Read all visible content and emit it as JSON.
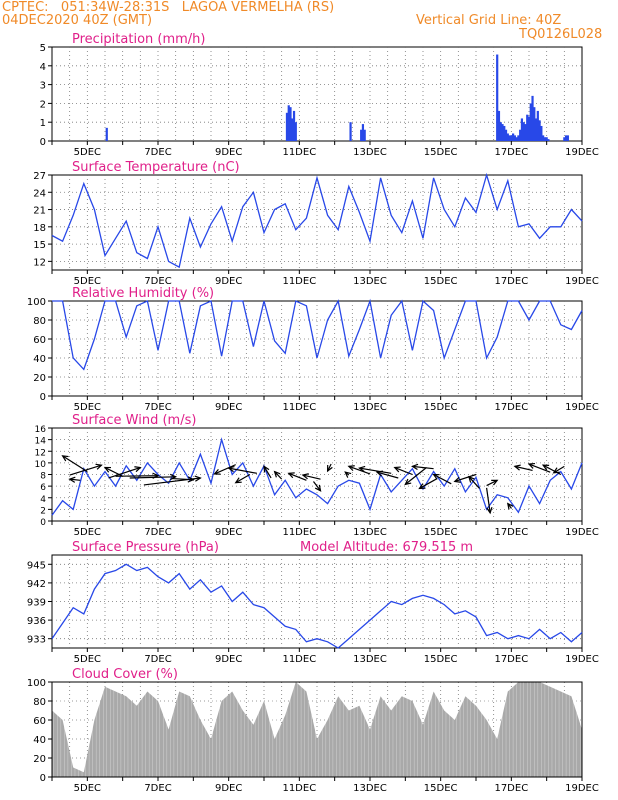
{
  "header": {
    "line1": "CPTEC:   051:34W-28:31S   LAGOA VERMELHA (RS)",
    "line2": "04DEC2020 40Z (GMT)",
    "grid_note": "Vertical Grid Line: 40Z",
    "code": "TQ0126L028"
  },
  "colors": {
    "header": "#f08a28",
    "title": "#e0208a",
    "line": "#2848e8",
    "cloud": "#a9a9a9",
    "wind": "#000000"
  },
  "chart_data": [
    {
      "type": "bar",
      "title": "Precipitation (mm/h)",
      "ylim": [
        0,
        5
      ],
      "yticks": [
        0,
        1,
        2,
        3,
        4,
        5
      ],
      "xlabels": [
        "5DEC",
        "7DEC",
        "9DEC",
        "11DEC",
        "13DEC",
        "15DEC",
        "17DEC",
        "19DEC"
      ],
      "x": [
        5.55,
        10.65,
        10.7,
        10.75,
        10.8,
        10.85,
        10.9,
        12.45,
        12.75,
        12.8,
        12.85,
        16.6,
        16.65,
        16.7,
        16.75,
        16.8,
        16.85,
        16.9,
        16.95,
        17.0,
        17.05,
        17.1,
        17.15,
        17.2,
        17.25,
        17.3,
        17.35,
        17.4,
        17.45,
        17.5,
        17.55,
        17.6,
        17.65,
        17.7,
        17.75,
        17.8,
        17.85,
        17.9,
        17.95,
        18.0,
        18.05,
        18.5,
        18.55,
        18.6
      ],
      "values": [
        0.7,
        1.5,
        1.9,
        1.8,
        1.2,
        1.6,
        1.0,
        1.0,
        0.6,
        0.9,
        0.6,
        4.6,
        1.6,
        1.0,
        0.9,
        0.8,
        0.6,
        0.4,
        0.3,
        0.3,
        0.4,
        0.3,
        0.2,
        0.3,
        0.6,
        1.2,
        1.0,
        0.9,
        1.4,
        1.3,
        2.0,
        2.4,
        1.8,
        1.2,
        1.6,
        1.1,
        0.8,
        0.3,
        0.2,
        0.2,
        0.1,
        0.2,
        0.3,
        0.3
      ]
    },
    {
      "type": "line",
      "title": "Surface Temperature (nC)",
      "ylim": [
        10.5,
        27
      ],
      "yticks": [
        12,
        15,
        18,
        21,
        24,
        27
      ],
      "xlabels": [
        "5DEC",
        "7DEC",
        "9DEC",
        "11DEC",
        "13DEC",
        "15DEC",
        "17DEC",
        "19DEC"
      ],
      "x": [
        4.0,
        4.3,
        4.6,
        4.9,
        5.2,
        5.5,
        5.8,
        6.1,
        6.4,
        6.7,
        7.0,
        7.3,
        7.6,
        7.9,
        8.2,
        8.5,
        8.8,
        9.1,
        9.4,
        9.7,
        10.0,
        10.3,
        10.6,
        10.9,
        11.2,
        11.5,
        11.8,
        12.1,
        12.4,
        12.7,
        13.0,
        13.3,
        13.6,
        13.9,
        14.2,
        14.5,
        14.8,
        15.1,
        15.4,
        15.7,
        16.0,
        16.3,
        16.6,
        16.9,
        17.2,
        17.5,
        17.8,
        18.1,
        18.4,
        18.7,
        19.0
      ],
      "values": [
        16.5,
        15.5,
        20,
        25.5,
        21,
        13,
        16,
        19,
        13.5,
        12.5,
        18,
        12,
        11,
        19.5,
        14.5,
        18.5,
        21.5,
        15.5,
        21.5,
        24,
        17,
        21,
        22,
        17.5,
        19.5,
        26.5,
        20,
        17.5,
        25,
        20.5,
        15.5,
        26.5,
        20,
        17,
        22.5,
        16,
        26.5,
        21,
        18,
        23,
        20.5,
        27,
        21,
        26,
        18,
        18.5,
        16,
        18,
        18,
        21,
        19
      ]
    },
    {
      "type": "line",
      "title": "Relative Humidity (%)",
      "ylim": [
        0,
        100
      ],
      "yticks": [
        0,
        20,
        40,
        60,
        80,
        100
      ],
      "xlabels": [
        "5DEC",
        "7DEC",
        "9DEC",
        "11DEC",
        "13DEC",
        "15DEC",
        "17DEC",
        "19DEC"
      ],
      "x": [
        4.0,
        4.3,
        4.6,
        4.9,
        5.2,
        5.5,
        5.8,
        6.1,
        6.4,
        6.7,
        7.0,
        7.3,
        7.6,
        7.9,
        8.2,
        8.5,
        8.8,
        9.1,
        9.4,
        9.7,
        10.0,
        10.3,
        10.6,
        10.9,
        11.2,
        11.5,
        11.8,
        12.1,
        12.4,
        12.7,
        13.0,
        13.3,
        13.6,
        13.9,
        14.2,
        14.5,
        14.8,
        15.1,
        15.4,
        15.7,
        16.0,
        16.3,
        16.6,
        16.9,
        17.2,
        17.5,
        17.8,
        18.1,
        18.4,
        18.7,
        19.0
      ],
      "values": [
        100,
        100,
        40,
        28,
        60,
        100,
        100,
        62,
        95,
        100,
        48,
        100,
        100,
        45,
        95,
        100,
        42,
        100,
        100,
        52,
        100,
        58,
        45,
        100,
        95,
        40,
        80,
        100,
        42,
        70,
        100,
        40,
        85,
        100,
        48,
        100,
        90,
        40,
        70,
        100,
        100,
        40,
        62,
        100,
        100,
        80,
        100,
        100,
        75,
        70,
        90
      ]
    },
    {
      "type": "line",
      "title": "Surface Wind (m/s)",
      "ylim": [
        0,
        16
      ],
      "yticks": [
        0,
        2,
        4,
        6,
        8,
        10,
        12,
        14,
        16
      ],
      "xlabels": [
        "5DEC",
        "7DEC",
        "9DEC",
        "11DEC",
        "13DEC",
        "15DEC",
        "17DEC",
        "19DEC"
      ],
      "x": [
        4.0,
        4.3,
        4.6,
        4.9,
        5.2,
        5.5,
        5.8,
        6.1,
        6.4,
        6.7,
        7.0,
        7.3,
        7.6,
        7.9,
        8.2,
        8.5,
        8.8,
        9.1,
        9.4,
        9.7,
        10.0,
        10.3,
        10.6,
        10.9,
        11.2,
        11.5,
        11.8,
        12.1,
        12.4,
        12.7,
        13.0,
        13.3,
        13.6,
        13.9,
        14.2,
        14.5,
        14.8,
        15.1,
        15.4,
        15.7,
        16.0,
        16.3,
        16.6,
        16.9,
        17.2,
        17.5,
        17.8,
        18.1,
        18.4,
        18.7,
        19.0
      ],
      "values": [
        1,
        3.5,
        2,
        9,
        6,
        8.5,
        6,
        9.5,
        7,
        10,
        8,
        6.5,
        10,
        7,
        11.5,
        6.5,
        14,
        8,
        10,
        6,
        9.5,
        4.5,
        7,
        4,
        5.5,
        4.5,
        3,
        6,
        7,
        6.5,
        2,
        8,
        5,
        7,
        9,
        5.5,
        8.5,
        6,
        9,
        5,
        7.5,
        2,
        4.5,
        4,
        1.5,
        6,
        3,
        7,
        8.5,
        5.5,
        10
      ],
      "arrows": [
        [
          4.3,
          11.2,
          5.0,
          8.5
        ],
        [
          4.5,
          7.2,
          4.8,
          7.0
        ],
        [
          5.4,
          9.6,
          4.5,
          7.9
        ],
        [
          5.5,
          9.2,
          6.0,
          7.7
        ],
        [
          6.5,
          9.2,
          5.6,
          7.4
        ],
        [
          7.0,
          7.8,
          5.8,
          7.7
        ],
        [
          7.5,
          7.6,
          6.2,
          7.4
        ],
        [
          8.2,
          7.4,
          6.6,
          6.2
        ],
        [
          8.0,
          7.1,
          7.4,
          7.3
        ],
        [
          8.6,
          8.1,
          9.2,
          9.7
        ],
        [
          9.0,
          9.1,
          9.8,
          8.2
        ],
        [
          9.2,
          6.6,
          9.6,
          8.0
        ],
        [
          10.0,
          9.4,
          10.2,
          7.4
        ],
        [
          10.3,
          8.5,
          10.5,
          7.2
        ],
        [
          10.7,
          8.2,
          11.2,
          7.0
        ],
        [
          11.1,
          7.9,
          11.6,
          7.2
        ],
        [
          11.6,
          5.2,
          11.4,
          6.8
        ],
        [
          11.8,
          8.6,
          11.9,
          9.8
        ],
        [
          12.3,
          8.4,
          12.4,
          7.9
        ],
        [
          12.4,
          9.4,
          13.0,
          8.1
        ],
        [
          12.7,
          9.1,
          13.6,
          8.2
        ],
        [
          13.2,
          8.4,
          13.8,
          7.4
        ],
        [
          13.7,
          9.2,
          14.2,
          8.0
        ],
        [
          14.0,
          6.3,
          14.6,
          9.2
        ],
        [
          14.2,
          9.4,
          14.8,
          9.0
        ],
        [
          14.4,
          5.6,
          14.9,
          7.3
        ],
        [
          14.8,
          8.0,
          15.3,
          6.4
        ],
        [
          15.4,
          6.8,
          16.0,
          8.0
        ],
        [
          15.8,
          7.6,
          16.1,
          5.6
        ],
        [
          16.4,
          1.4,
          16.3,
          5.7
        ],
        [
          16.6,
          7.0,
          16.3,
          6.1
        ],
        [
          16.9,
          3.0,
          17.0,
          2.2
        ],
        [
          17.1,
          9.4,
          17.6,
          8.7
        ],
        [
          17.5,
          9.8,
          18.1,
          8.4
        ],
        [
          17.9,
          9.6,
          18.4,
          8.0
        ],
        [
          18.2,
          8.3,
          18.5,
          9.4
        ]
      ]
    },
    {
      "type": "line",
      "title": "Surface Pressure (hPa)",
      "annotation": "Model Altitude: 679.515 m",
      "ylim": [
        931.5,
        946.5
      ],
      "yticks": [
        933,
        936,
        939,
        942,
        945
      ],
      "xlabels": [
        "5DEC",
        "7DEC",
        "9DEC",
        "11DEC",
        "13DEC",
        "15DEC",
        "17DEC",
        "19DEC"
      ],
      "x": [
        4.0,
        4.3,
        4.6,
        4.9,
        5.2,
        5.5,
        5.8,
        6.1,
        6.4,
        6.7,
        7.0,
        7.3,
        7.6,
        7.9,
        8.2,
        8.5,
        8.8,
        9.1,
        9.4,
        9.7,
        10.0,
        10.3,
        10.6,
        10.9,
        11.2,
        11.5,
        11.8,
        12.1,
        12.4,
        12.7,
        13.0,
        13.3,
        13.6,
        13.9,
        14.2,
        14.5,
        14.8,
        15.1,
        15.4,
        15.7,
        16.0,
        16.3,
        16.6,
        16.9,
        17.2,
        17.5,
        17.8,
        18.1,
        18.4,
        18.7,
        19.0
      ],
      "values": [
        933,
        935.5,
        938,
        937,
        941,
        943.5,
        944,
        945,
        944,
        944.5,
        943,
        942,
        943.5,
        941,
        942.5,
        940.5,
        941.5,
        939,
        940.5,
        938.5,
        938,
        936.5,
        935,
        934.5,
        932.5,
        933,
        932.5,
        931.5,
        933,
        934.5,
        936,
        937.5,
        939,
        938.5,
        939.5,
        940,
        939.5,
        938.5,
        937,
        937.5,
        936.5,
        933.5,
        934,
        933,
        933.5,
        933,
        934.5,
        933,
        934,
        932.5,
        934
      ]
    },
    {
      "type": "area",
      "title": "Cloud Cover (%)",
      "ylim": [
        0,
        100
      ],
      "yticks": [
        0,
        20,
        40,
        60,
        80,
        100
      ],
      "xlabels": [
        "5DEC",
        "7DEC",
        "9DEC",
        "11DEC",
        "13DEC",
        "15DEC",
        "17DEC",
        "19DEC"
      ],
      "x": [
        4.0,
        4.3,
        4.6,
        4.9,
        5.2,
        5.5,
        5.8,
        6.1,
        6.4,
        6.7,
        7.0,
        7.3,
        7.6,
        7.9,
        8.2,
        8.5,
        8.8,
        9.1,
        9.4,
        9.7,
        10.0,
        10.3,
        10.6,
        10.9,
        11.2,
        11.5,
        11.8,
        12.1,
        12.4,
        12.7,
        13.0,
        13.3,
        13.6,
        13.9,
        14.2,
        14.5,
        14.8,
        15.1,
        15.4,
        15.7,
        16.0,
        16.3,
        16.6,
        16.9,
        17.2,
        17.5,
        17.8,
        18.1,
        18.4,
        18.7,
        19.0
      ],
      "values": [
        70,
        60,
        10,
        5,
        60,
        95,
        90,
        85,
        75,
        90,
        80,
        50,
        90,
        85,
        60,
        40,
        80,
        90,
        70,
        55,
        80,
        40,
        65,
        100,
        90,
        40,
        60,
        85,
        70,
        75,
        50,
        85,
        70,
        85,
        80,
        55,
        90,
        70,
        60,
        85,
        75,
        60,
        40,
        90,
        100,
        100,
        100,
        95,
        90,
        85,
        50
      ]
    }
  ]
}
